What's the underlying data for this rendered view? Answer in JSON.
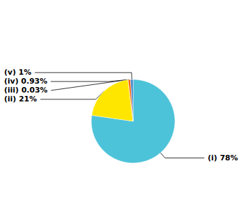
{
  "chart_data": {
    "type": "pie",
    "categories": [
      "(i) 78%",
      "(ii) 21%",
      "(iii) 0.03%",
      "(iv) 0.93%",
      "(v) 1%"
    ],
    "values": [
      78.0,
      21.0,
      0.03,
      0.93,
      1.0
    ],
    "colors": [
      "#4DC3D9",
      "#FFE600",
      "#4CAF50",
      "#FF6600",
      "#4488CC"
    ]
  }
}
